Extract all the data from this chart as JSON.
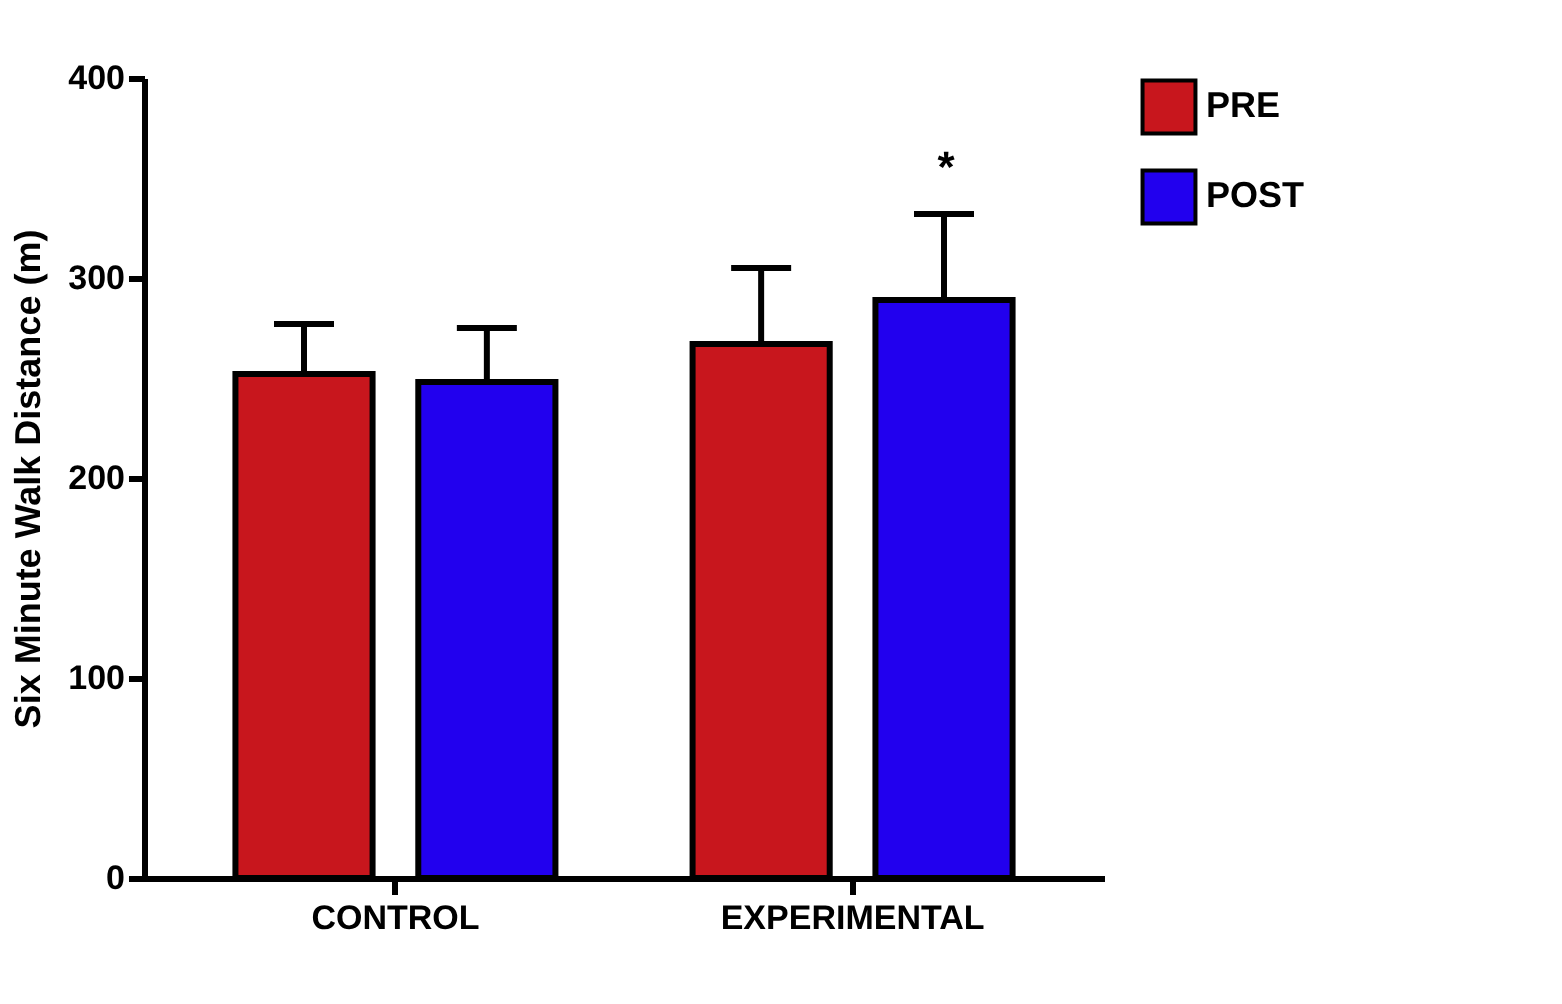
{
  "chart_data": {
    "type": "bar",
    "categories": [
      "CONTROL",
      "EXPERIMENTAL"
    ],
    "ylabel": "Six Minute Walk Distance (m)",
    "ylim": [
      0,
      400
    ],
    "yticks": [
      0,
      100,
      200,
      300,
      400
    ],
    "series": [
      {
        "name": "PRE",
        "color": "#c8161d",
        "values": [
          252,
          267
        ],
        "errors": [
          [
            252,
            277
          ],
          [
            267,
            305
          ]
        ]
      },
      {
        "name": "POST",
        "color": "#2200ee",
        "values": [
          248,
          289
        ],
        "errors": [
          [
            248,
            275
          ],
          [
            289,
            332
          ]
        ]
      }
    ],
    "annotations": [
      "*"
    ],
    "legend": "top right",
    "grid": false
  }
}
